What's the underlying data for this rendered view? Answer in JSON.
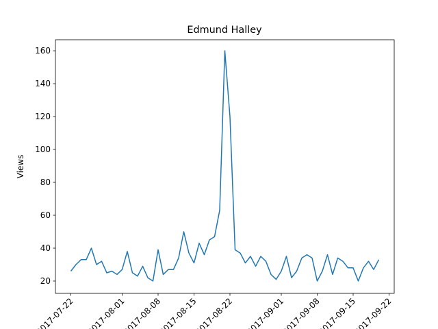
{
  "chart_data": {
    "type": "line",
    "title": "Edmund Halley",
    "y_label": "Views",
    "x": [
      "2017-07-22",
      "2017-07-23",
      "2017-07-24",
      "2017-07-25",
      "2017-07-26",
      "2017-07-27",
      "2017-07-28",
      "2017-07-29",
      "2017-07-30",
      "2017-07-31",
      "2017-08-01",
      "2017-08-02",
      "2017-08-03",
      "2017-08-04",
      "2017-08-05",
      "2017-08-06",
      "2017-08-07",
      "2017-08-08",
      "2017-08-09",
      "2017-08-10",
      "2017-08-11",
      "2017-08-12",
      "2017-08-13",
      "2017-08-14",
      "2017-08-15",
      "2017-08-16",
      "2017-08-17",
      "2017-08-18",
      "2017-08-19",
      "2017-08-20",
      "2017-08-21",
      "2017-08-22",
      "2017-08-23",
      "2017-08-24",
      "2017-08-25",
      "2017-08-26",
      "2017-08-27",
      "2017-08-28",
      "2017-08-29",
      "2017-08-30",
      "2017-08-31",
      "2017-09-01",
      "2017-09-02",
      "2017-09-03",
      "2017-09-04",
      "2017-09-05",
      "2017-09-06",
      "2017-09-07",
      "2017-09-08",
      "2017-09-09",
      "2017-09-10",
      "2017-09-11",
      "2017-09-12",
      "2017-09-13",
      "2017-09-14",
      "2017-09-15",
      "2017-09-16",
      "2017-09-17",
      "2017-09-18",
      "2017-09-19",
      "2017-09-20"
    ],
    "series": [
      {
        "name": "Views",
        "color": "#1f77b4",
        "values": [
          26,
          30,
          33,
          33,
          40,
          30,
          32,
          25,
          26,
          24,
          27,
          38,
          25,
          23,
          29,
          22,
          20,
          39,
          24,
          27,
          27,
          34,
          50,
          37,
          31,
          43,
          36,
          45,
          47,
          63,
          160,
          120,
          39,
          37,
          31,
          35,
          29,
          35,
          32,
          24,
          21,
          26,
          35,
          22,
          26,
          34,
          36,
          34,
          20,
          26,
          36,
          24,
          34,
          32,
          28,
          28,
          20,
          28,
          32,
          27,
          33
        ]
      }
    ],
    "xlim": [
      "2017-07-19",
      "2017-09-23"
    ],
    "xticks": [
      "2017-07-22",
      "2017-08-01",
      "2017-08-08",
      "2017-08-15",
      "2017-08-22",
      "2017-09-01",
      "2017-09-08",
      "2017-09-15",
      "2017-09-22"
    ],
    "ylim": [
      12.5,
      166.7
    ],
    "yticks": [
      20,
      40,
      60,
      80,
      100,
      120,
      140,
      160
    ]
  }
}
